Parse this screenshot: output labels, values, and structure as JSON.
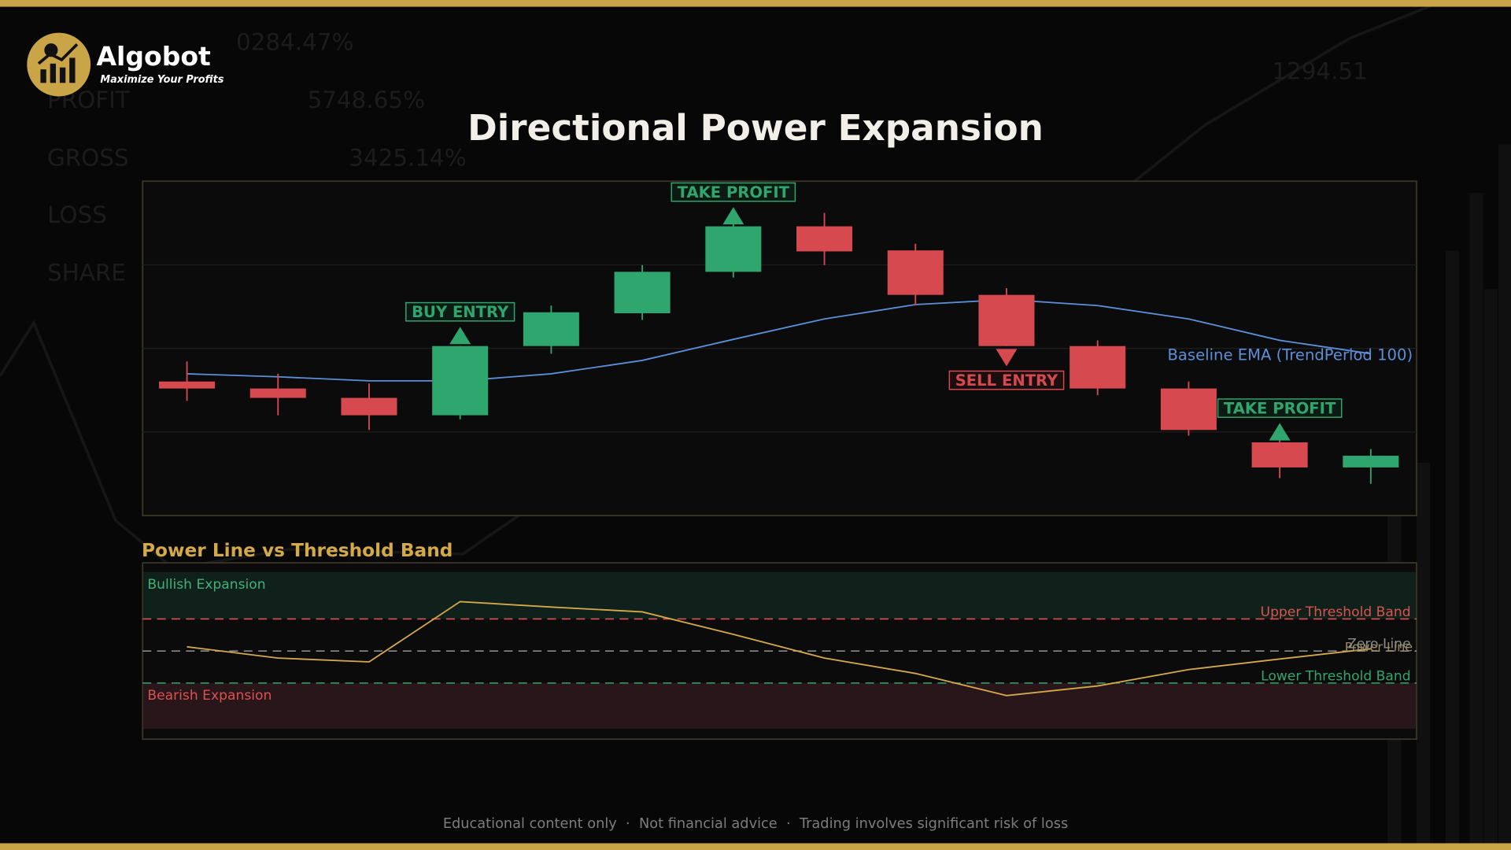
{
  "header": {
    "brand": "Algobot",
    "tagline": "Maximize Your Profits"
  },
  "background_text": [
    "0284.47%",
    "PROFIT",
    "5748.65%",
    "GROSS",
    "3425.14%",
    "LOSS",
    "SHARE",
    "1294.51"
  ],
  "footer": "Educational content only  ·  Not financial advice  ·  Trading involves significant risk of loss",
  "chart_data": [
    {
      "type": "candlestick",
      "title": "Directional Power Expansion",
      "open": [
        40.1,
        38.0,
        35.2,
        30.0,
        50.7,
        60.5,
        72.9,
        86.5,
        79.3,
        66.0,
        50.7,
        38.0,
        21.9,
        14.4
      ],
      "high": [
        46.1,
        42.4,
        39.5,
        50.7,
        62.8,
        74.9,
        88.5,
        90.5,
        81.3,
        68.0,
        52.4,
        40.1,
        24.8,
        19.9
      ],
      "low": [
        34.3,
        30.0,
        25.6,
        28.8,
        48.4,
        58.5,
        71.2,
        74.9,
        62.8,
        50.7,
        36.0,
        23.9,
        11.2,
        9.5
      ],
      "close": [
        38.0,
        35.2,
        30.0,
        50.7,
        60.8,
        72.9,
        86.5,
        79.0,
        66.0,
        50.7,
        38.0,
        25.6,
        14.4,
        17.9
      ],
      "up_color": "#2ea66d",
      "down_color": "#d64a4f",
      "series": [
        {
          "name": "Baseline EMA (TrendPeriod 100)",
          "color": "#5b8fd8",
          "values": [
            42.4,
            41.5,
            40.3,
            40.3,
            42.4,
            46.4,
            52.7,
            58.8,
            63.1,
            64.6,
            62.8,
            58.8,
            52.4,
            48.4
          ]
        }
      ],
      "signals": [
        null,
        null,
        null,
        {
          "label": "BUY ENTRY",
          "side": "up"
        },
        null,
        null,
        {
          "label": "TAKE PROFIT",
          "side": "up"
        },
        null,
        null,
        {
          "label": "SELL ENTRY",
          "side": "down"
        },
        null,
        null,
        {
          "label": "TAKE PROFIT",
          "side": "up"
        },
        null
      ],
      "ylim": [
        0,
        100
      ],
      "grid": true
    },
    {
      "type": "line",
      "title": "Power Line vs Threshold Band",
      "series": [
        {
          "name": "Power Line",
          "color": "#d4a94a",
          "values": [
            0.13,
            -0.22,
            -0.34,
            1.54,
            1.37,
            1.22,
            0.52,
            -0.22,
            -0.7,
            -1.39,
            -1.09,
            -0.58,
            -0.25,
            0.07
          ]
        }
      ],
      "reference_lines": [
        {
          "label": "Upper Threshold Band",
          "value": 1,
          "color": "#d9534f"
        },
        {
          "label": "Zero Line",
          "value": 0,
          "color": "#8a8a8a"
        },
        {
          "label": "Lower Threshold Band",
          "value": -1,
          "color": "#2ea66d"
        }
      ],
      "zones": [
        {
          "label": "Bullish Expansion",
          "from": 1,
          "to": 2.46,
          "color": "#10201a",
          "text_color": "#3fb27a"
        },
        {
          "label": "Bearish Expansion",
          "from": -2.43,
          "to": -1,
          "color": "#29161a",
          "text_color": "#d9534f"
        }
      ],
      "ylim": [
        -2.75,
        2.75
      ]
    }
  ]
}
